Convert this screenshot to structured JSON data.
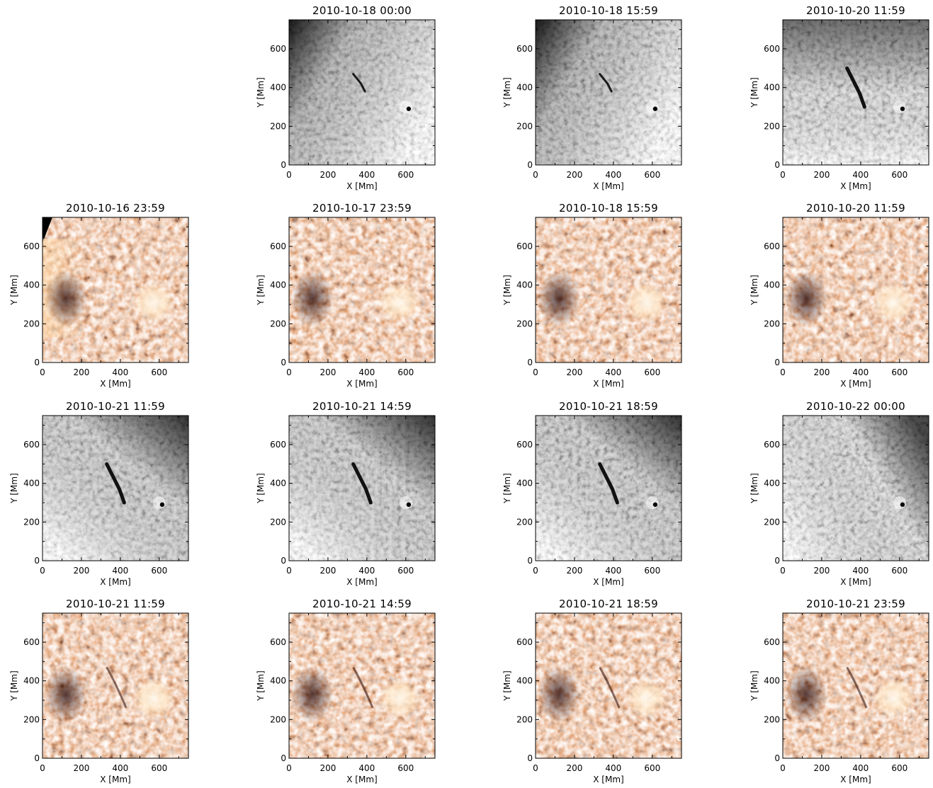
{
  "figure": {
    "rows": [
      {
        "kind": "halpha",
        "panels": [
          null,
          {
            "title": "2010-10-18 00:00",
            "vignette": "left",
            "features": [
              "filament-small",
              "sunspot"
            ]
          },
          {
            "title": "2010-10-18 15:59",
            "vignette": "left",
            "features": [
              "filament-small",
              "sunspot"
            ]
          },
          {
            "title": "2010-10-20 11:59",
            "vignette": "top",
            "features": [
              "filament",
              "sunspot"
            ]
          }
        ]
      },
      {
        "kind": "euv",
        "panels": [
          {
            "title": "2010-10-16 23:59",
            "features": [
              "limb",
              "active-region"
            ]
          },
          {
            "title": "2010-10-17 23:59",
            "features": [
              "active-region"
            ]
          },
          {
            "title": "2010-10-18 15:59",
            "features": [
              "active-region"
            ]
          },
          {
            "title": "2010-10-20 11:59",
            "features": [
              "active-region"
            ]
          }
        ]
      },
      {
        "kind": "halpha",
        "panels": [
          {
            "title": "2010-10-21 11:59",
            "vignette": "top-right",
            "features": [
              "filament",
              "sunspot"
            ]
          },
          {
            "title": "2010-10-21 14:59",
            "vignette": "top-right",
            "features": [
              "filament",
              "sunspot"
            ]
          },
          {
            "title": "2010-10-21 18:59",
            "vignette": "top-right",
            "features": [
              "filament",
              "sunspot"
            ]
          },
          {
            "title": "2010-10-22 00:00",
            "vignette": "right",
            "features": [
              "sunspot"
            ]
          }
        ]
      },
      {
        "kind": "euv",
        "panels": [
          {
            "title": "2010-10-21 11:59",
            "features": [
              "active-region",
              "filament-channel"
            ]
          },
          {
            "title": "2010-10-21 14:59",
            "features": [
              "active-region",
              "filament-channel"
            ]
          },
          {
            "title": "2010-10-21 18:59",
            "features": [
              "active-region",
              "filament-channel"
            ]
          },
          {
            "title": "2010-10-21 23:59",
            "features": [
              "active-region",
              "filament-channel"
            ]
          }
        ]
      }
    ],
    "axes": {
      "xlabel": "X [Mm]",
      "ylabel": "Y [Mm]",
      "xticks": [
        "0",
        "200",
        "400",
        "600"
      ],
      "yticks": [
        "0",
        "200",
        "400",
        "600"
      ],
      "range": [
        0,
        750
      ]
    },
    "colors": {
      "halpha_light": "#f2f2f2",
      "halpha_dark": "#3a3a3a",
      "euv_light": "#fff0dc",
      "euv_mid": "#c8501e",
      "euv_dark": "#2a0500"
    }
  }
}
